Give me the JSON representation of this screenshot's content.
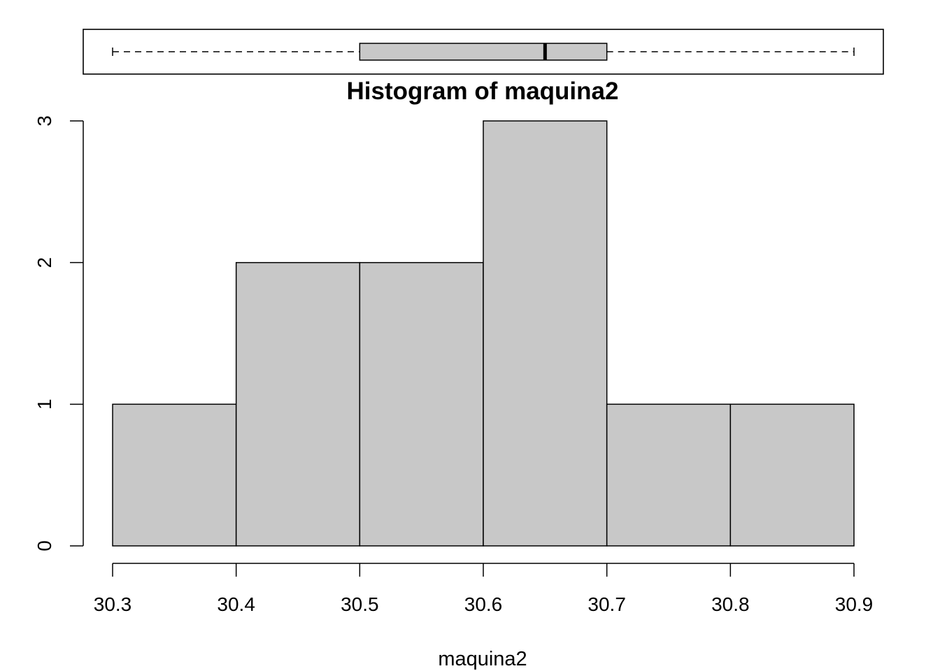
{
  "chart_data": [
    {
      "type": "boxplot",
      "orientation": "horizontal",
      "variable": "maquina2",
      "min": 30.3,
      "q1": 30.5,
      "median": 30.65,
      "q3": 30.7,
      "max": 30.9,
      "xlim": [
        30.3,
        30.9
      ],
      "box_color": "#c8c8c8"
    },
    {
      "type": "bar",
      "title": "Histogram of maquina2",
      "xlabel": "maquina2",
      "ylabel": "",
      "bins": [
        {
          "start": 30.3,
          "end": 30.4,
          "count": 1
        },
        {
          "start": 30.4,
          "end": 30.5,
          "count": 2
        },
        {
          "start": 30.5,
          "end": 30.6,
          "count": 2
        },
        {
          "start": 30.6,
          "end": 30.7,
          "count": 3
        },
        {
          "start": 30.7,
          "end": 30.8,
          "count": 1
        },
        {
          "start": 30.8,
          "end": 30.9,
          "count": 1
        }
      ],
      "xticks": [
        "30.3",
        "30.4",
        "30.5",
        "30.6",
        "30.7",
        "30.8",
        "30.9"
      ],
      "yticks": [
        "0",
        "1",
        "2",
        "3"
      ],
      "xlim": [
        30.3,
        30.9
      ],
      "ylim": [
        0,
        3
      ],
      "bar_color": "#c8c8c8",
      "grid": false,
      "legend": "none"
    }
  ]
}
